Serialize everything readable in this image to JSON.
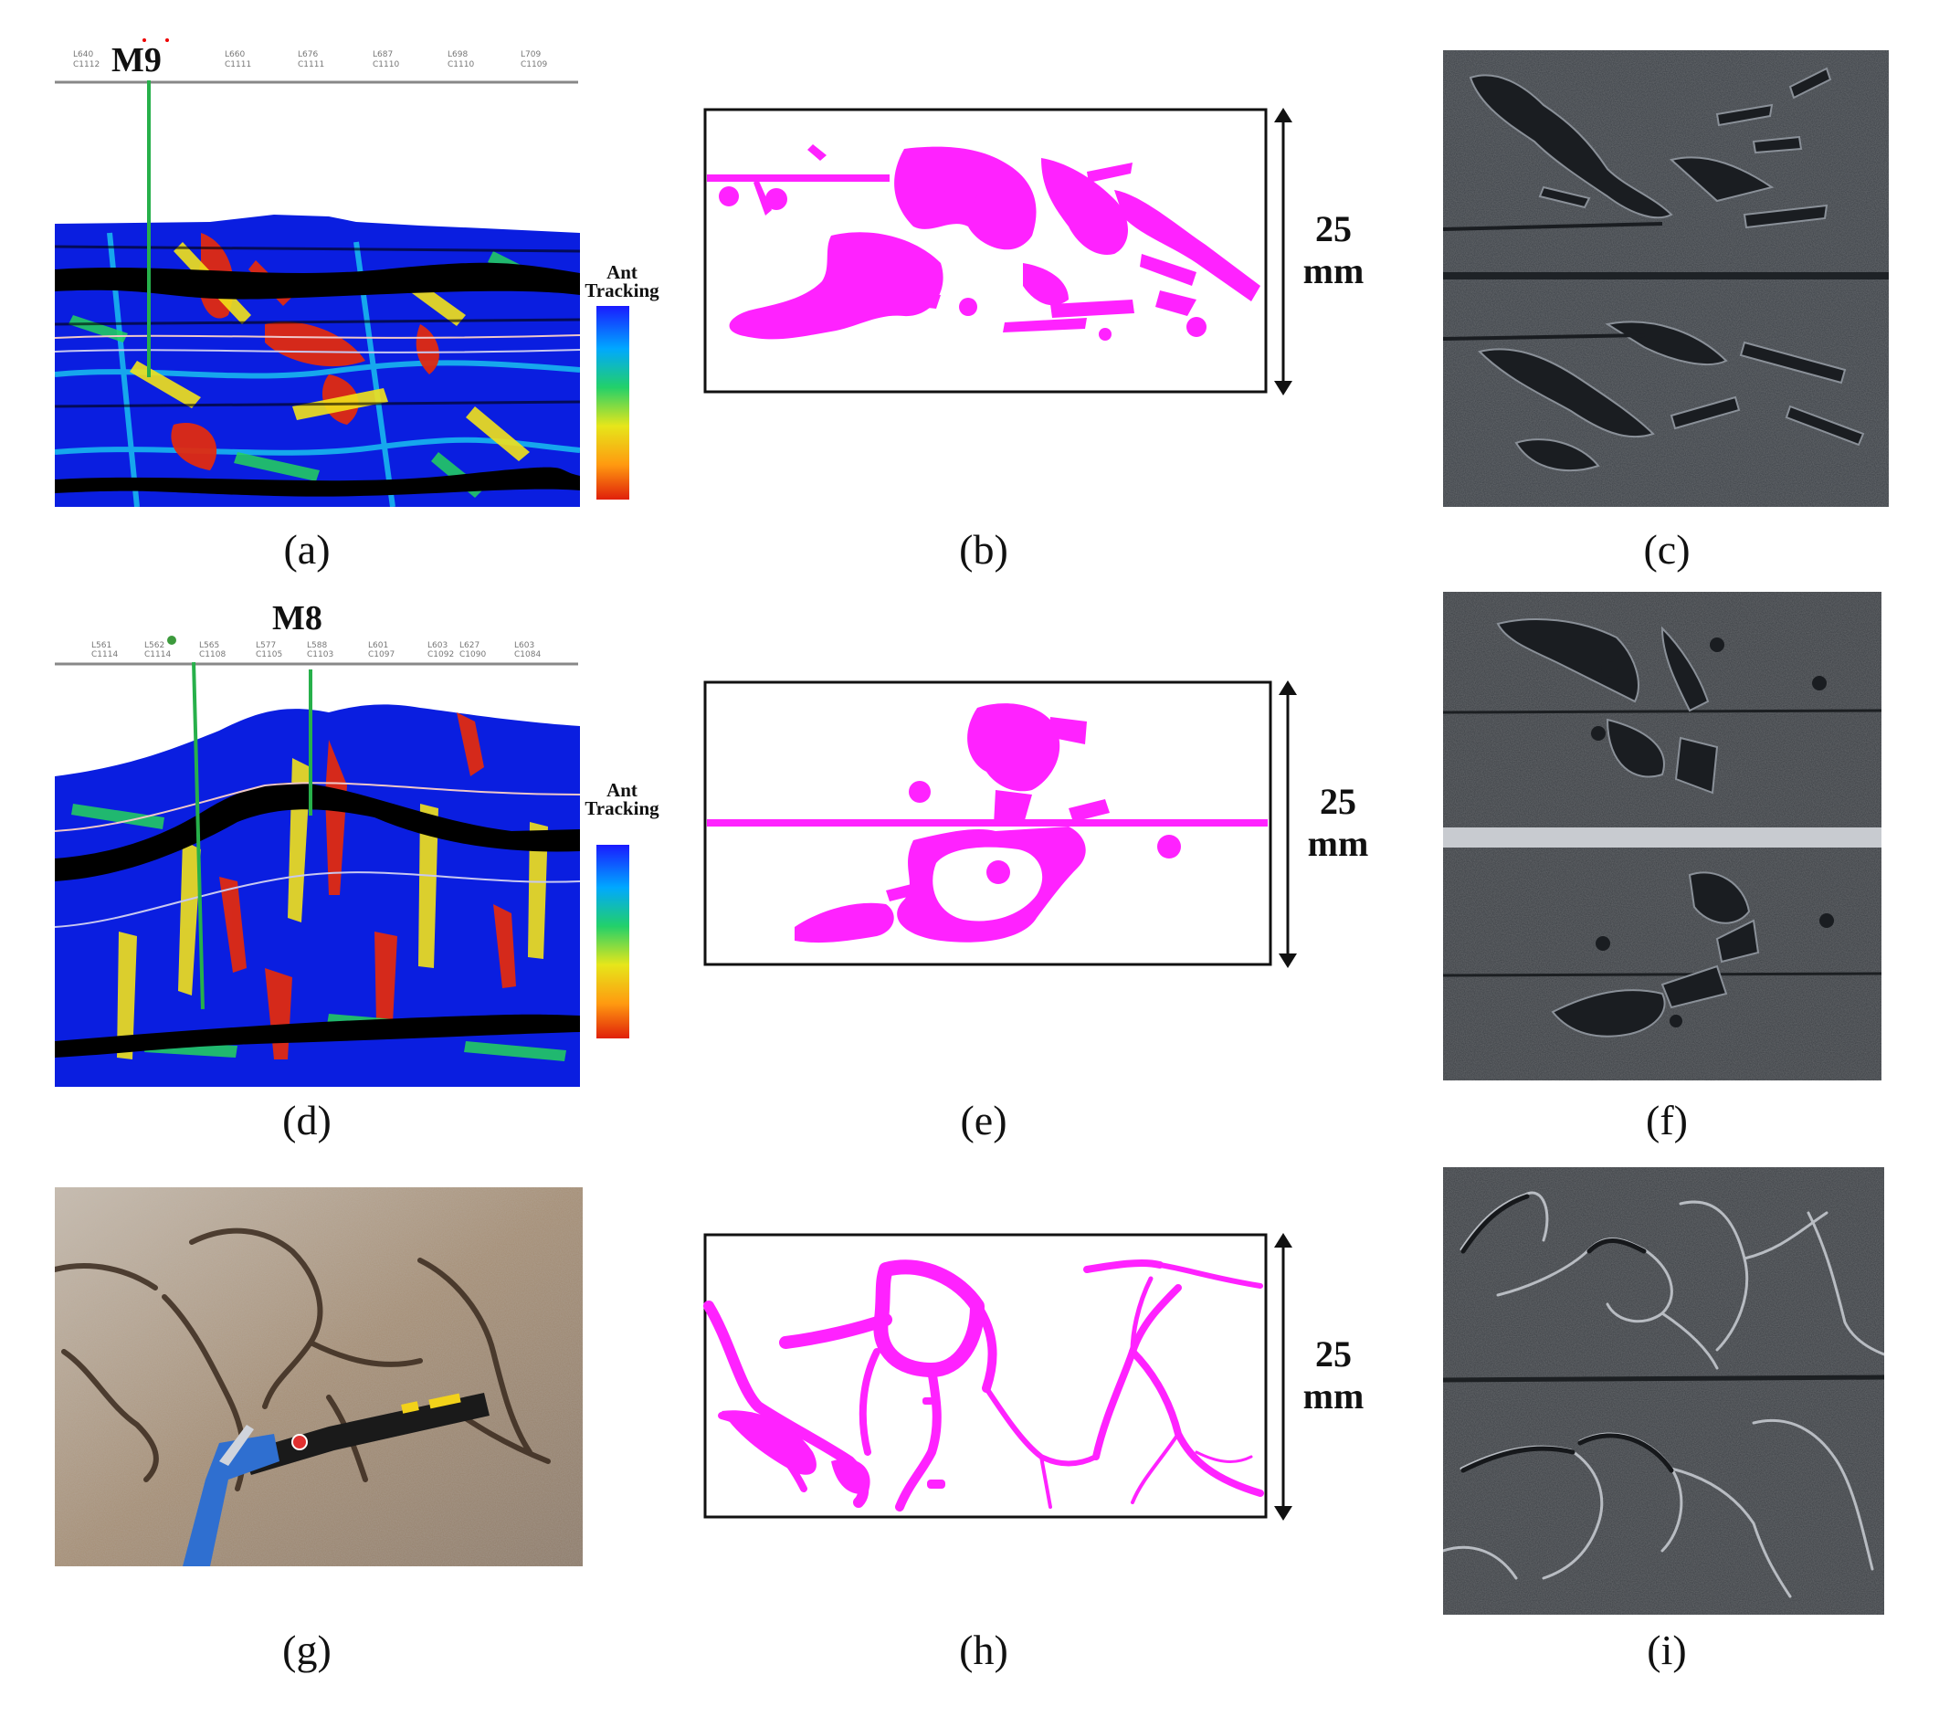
{
  "panels": {
    "a": {
      "caption": "(a)",
      "well_label": "M9",
      "legend_title_1": "Ant",
      "legend_title_2": "Tracking"
    },
    "b": {
      "caption": "(b)",
      "dimension_value": "25",
      "dimension_unit": "mm"
    },
    "c": {
      "caption": "(c)"
    },
    "d": {
      "caption": "(d)",
      "well_label": "M8",
      "legend_title_1": "Ant",
      "legend_title_2": "Tracking"
    },
    "e": {
      "caption": "(e)",
      "dimension_value": "25",
      "dimension_unit": "mm"
    },
    "f": {
      "caption": "(f)"
    },
    "g": {
      "caption": "(g)"
    },
    "h": {
      "caption": "(h)",
      "dimension_value": "25",
      "dimension_unit": "mm"
    },
    "i": {
      "caption": "(i)"
    }
  },
  "colors": {
    "fracture_magenta": "#ff22ff",
    "seismic_blue": "#0a1ee0",
    "ant_red": "#e02a10",
    "slab_gray": "#3b4046",
    "outcrop_tan": "#b9a48c"
  }
}
